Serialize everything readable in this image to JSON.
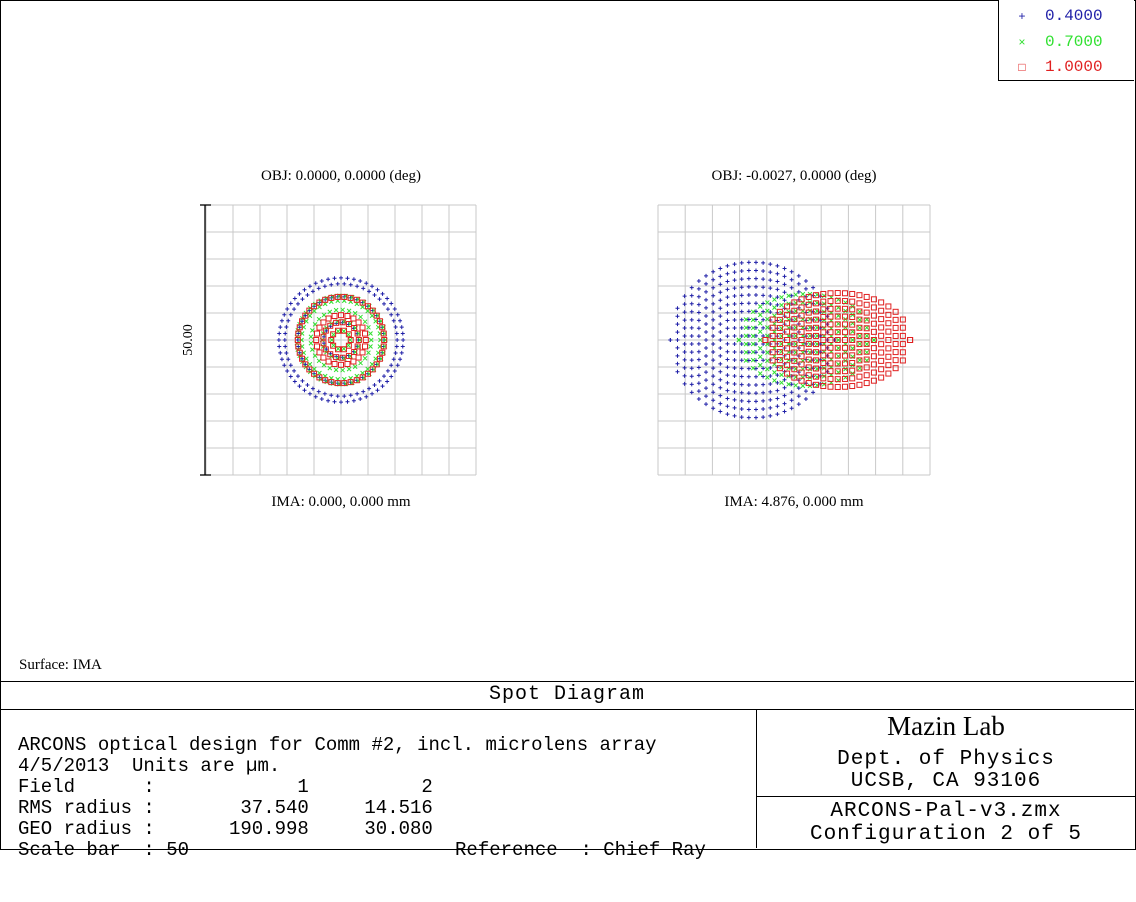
{
  "legend": [
    {
      "symbol": "+",
      "label": "0.4000",
      "color": "#2020a8"
    },
    {
      "symbol": "×",
      "label": "0.7000",
      "color": "#30e030"
    },
    {
      "symbol": "□",
      "label": "1.0000",
      "color": "#e02020"
    }
  ],
  "fields": [
    {
      "obj": "OBJ: 0.0000, 0.0000 (deg)",
      "ima": "IMA: 0.000, 0.000 mm"
    },
    {
      "obj": "OBJ: -0.0027, 0.0000 (deg)",
      "ima": "IMA: 4.876, 0.000 mm"
    }
  ],
  "scale_label": "50.00",
  "surface": "Surface: IMA",
  "title": "Spot Diagram",
  "info": {
    "line1": "ARCONS optical design for Comm #2, incl. microlens array",
    "line2": "4/5/2013  Units are µm.",
    "field_label": "Field      :",
    "field_1": "1",
    "field_2": "2",
    "rms_label": "RMS radius :",
    "rms_1": "37.540",
    "rms_2": "14.516",
    "geo_label": "GEO radius :",
    "geo_1": "190.998",
    "geo_2": "30.080",
    "scale_label": "Scale bar  : 50",
    "reference": "Reference  : Chief Ray"
  },
  "lab": {
    "name": "Mazin Lab",
    "dept": "Dept. of Physics",
    "address": "UCSB, CA 93106",
    "file": "ARCONS-Pal-v3.zmx",
    "configuration": "Configuration 2 of 5"
  },
  "chart_data": {
    "type": "scatter",
    "title": "Spot Diagram",
    "units": "µm",
    "scale_bar": 50,
    "box_size_um": 50,
    "grid": true,
    "legend_position": "top-right",
    "wavelengths": [
      "0.4000",
      "0.7000",
      "1.0000"
    ],
    "fields": [
      {
        "field": 1,
        "rms_radius": 37.54,
        "geo_radius": 190.998,
        "center_um": [
          0,
          0
        ],
        "spots": [
          {
            "wavelength": "0.4000",
            "pattern": "rings",
            "rings_radius_um": [
              11.5,
              10.4,
              8.0,
              3.2
            ]
          },
          {
            "wavelength": "0.7000",
            "pattern": "rings",
            "rings_radius_um": [
              8.2,
              7.3,
              5.6,
              3.5,
              1.7
            ]
          },
          {
            "wavelength": "1.0000",
            "pattern": "rings",
            "rings_radius_um": [
              8.0,
              4.6,
              3.3,
              1.8
            ]
          }
        ]
      },
      {
        "field": 2,
        "rms_radius": 14.516,
        "geo_radius": 30.08,
        "center_um": [
          0,
          0
        ],
        "spots": [
          {
            "wavelength": "0.4000",
            "pattern": "fan",
            "x_range_um": [
              -22.9,
              7.5
            ],
            "max_half_height_um": 14.4
          },
          {
            "wavelength": "0.7000",
            "pattern": "fan",
            "x_range_um": [
              -10.2,
              14.8
            ],
            "max_half_height_um": 8.5
          },
          {
            "wavelength": "1.0000",
            "pattern": "fan",
            "x_range_um": [
              -5.3,
              21.5
            ],
            "max_half_height_um": 8.7
          }
        ]
      }
    ]
  }
}
